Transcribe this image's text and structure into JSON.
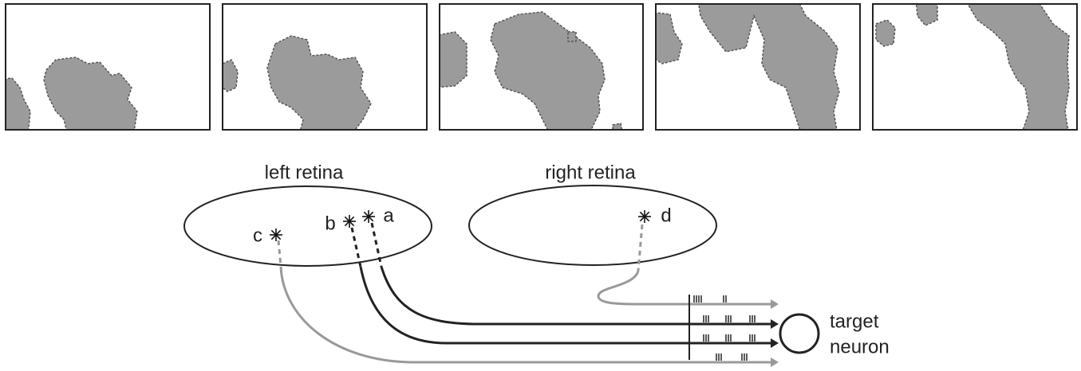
{
  "retinas": [
    {
      "label": "left retina"
    },
    {
      "label": "right retina"
    }
  ],
  "cells": [
    {
      "label": "a"
    },
    {
      "label": "b"
    },
    {
      "label": "c"
    },
    {
      "label": "d"
    }
  ],
  "target": {
    "lines": [
      "target",
      "neuron"
    ]
  }
}
